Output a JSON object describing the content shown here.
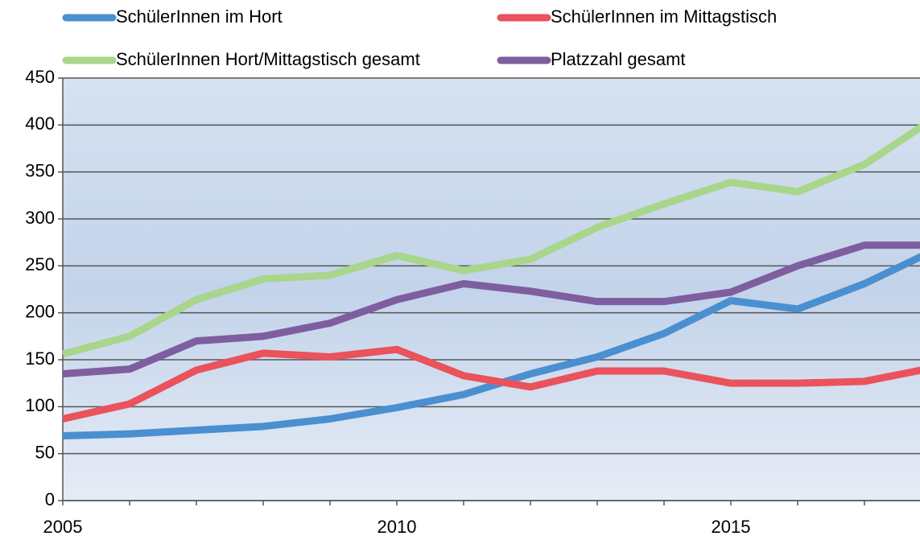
{
  "chart_data": {
    "type": "line",
    "x": [
      2005,
      2006,
      2007,
      2008,
      2009,
      2010,
      2011,
      2012,
      2013,
      2014,
      2015,
      2016,
      2017,
      2018
    ],
    "series": [
      {
        "name": "SchülerInnen im Hort",
        "color": "#4a8fd0",
        "values": [
          69,
          71,
          75,
          79,
          87,
          99,
          113,
          135,
          153,
          178,
          213,
          204,
          231,
          265
        ]
      },
      {
        "name": "SchülerInnen im Mittagstisch",
        "color": "#ea525c",
        "values": [
          87,
          103,
          139,
          157,
          153,
          161,
          133,
          121,
          138,
          138,
          125,
          125,
          127,
          141
        ]
      },
      {
        "name": "SchülerInnen Hort/Mittagstisch gesamt",
        "color": "#a8d68a",
        "values": [
          156,
          175,
          214,
          236,
          240,
          261,
          245,
          257,
          291,
          316,
          339,
          329,
          358,
          405
        ]
      },
      {
        "name": "Platzzahl gesamt",
        "color": "#7e5e9f",
        "values": [
          135,
          140,
          170,
          175,
          189,
          214,
          231,
          223,
          212,
          212,
          222,
          250,
          272,
          272
        ]
      }
    ],
    "xlim": [
      2005,
      2018
    ],
    "xticks": [
      2005,
      2010,
      2015
    ],
    "ylim": [
      0,
      450
    ],
    "yticks": [
      0,
      50,
      100,
      150,
      200,
      250,
      300,
      350,
      400,
      450
    ],
    "grid": true
  }
}
